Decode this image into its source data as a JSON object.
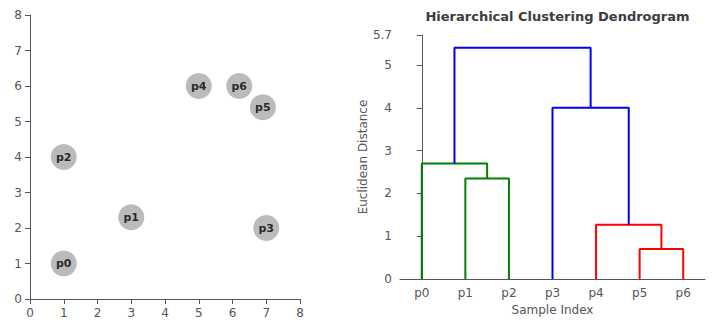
{
  "chart_data": [
    {
      "type": "scatter",
      "point_labels": [
        "p0",
        "p1",
        "p2",
        "p3",
        "p4",
        "p5",
        "p6"
      ],
      "x": [
        1,
        3,
        1,
        7,
        5,
        6.9,
        6.2
      ],
      "y": [
        1,
        2.3,
        4,
        2,
        6,
        5.4,
        6
      ],
      "color": "#aaaaaa",
      "xlim": [
        0,
        8
      ],
      "xticks": [
        0,
        1,
        2,
        3,
        4,
        5,
        6,
        7,
        8
      ],
      "ylim": [
        0,
        8
      ],
      "yticks": [
        0,
        1,
        2,
        3,
        4,
        5,
        6,
        7,
        8
      ],
      "grid": false
    },
    {
      "type": "dendrogram",
      "title": "Hierarchical Clustering Dendrogram",
      "xlabel": "Sample Index",
      "ylabel": "Euclidean Distance",
      "categories": [
        "p0",
        "p1",
        "p2",
        "p3",
        "p4",
        "p5",
        "p6"
      ],
      "ylim": [
        0,
        5.7
      ],
      "yticks": [
        0,
        1,
        2,
        3,
        4,
        5
      ],
      "grid": false,
      "tree": {
        "height": 5.4,
        "color": "#0000ff",
        "children": [
          {
            "height": 2.7,
            "color": "#008000",
            "children": [
              "p0",
              {
                "height": 2.35,
                "color": "#008000",
                "children": [
                  "p1",
                  "p2"
                ]
              }
            ]
          },
          {
            "height": 4.0,
            "color": "#0000ff",
            "children": [
              "p3",
              {
                "height": 1.27,
                "color": "#ff0000",
                "children": [
                  "p4",
                  {
                    "height": 0.7,
                    "color": "#ff0000",
                    "children": [
                      "p5",
                      "p6"
                    ]
                  }
                ]
              }
            ]
          }
        ]
      }
    }
  ]
}
